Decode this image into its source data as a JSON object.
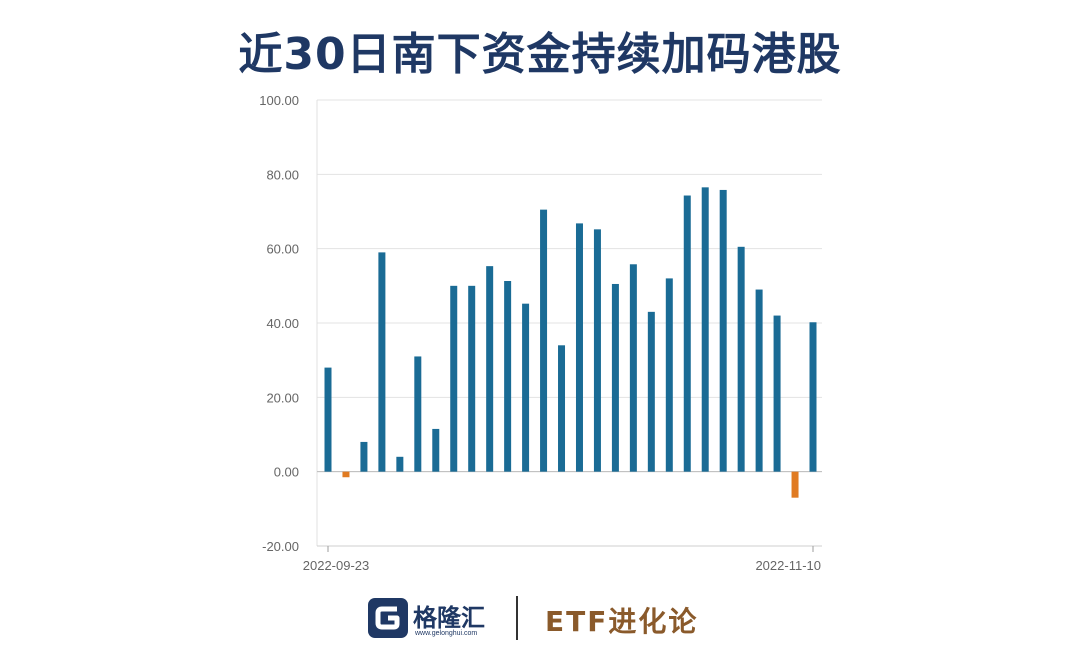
{
  "title": "近30日南下资金持续加码港股",
  "chart_data": {
    "type": "bar",
    "ylim": [
      -20,
      100
    ],
    "yticks": [
      100,
      80,
      60,
      40,
      20,
      0,
      -20
    ],
    "ytick_labels": [
      "100.00",
      "80.00",
      "60.00",
      "40.00",
      "20.00",
      "0.00",
      "-20.00"
    ],
    "xtick_labels": [
      "2022-09-23",
      "2022-11-10"
    ],
    "grid": true,
    "positive_color": "#1a6b95",
    "negative_color": "#e07b22",
    "values": [
      28,
      -1.5,
      8,
      59,
      4,
      31,
      11.5,
      50,
      50,
      55.3,
      51.3,
      45.2,
      70.5,
      34,
      66.8,
      65.2,
      50.5,
      55.8,
      43,
      52,
      74.3,
      76.5,
      75.8,
      60.5,
      49,
      42,
      -7,
      40.2
    ]
  },
  "footer": {
    "brand_name": "格隆汇",
    "brand_url": "www.gelonghui.com",
    "logo_letter": "G",
    "etf_text": "ETF进化论"
  }
}
